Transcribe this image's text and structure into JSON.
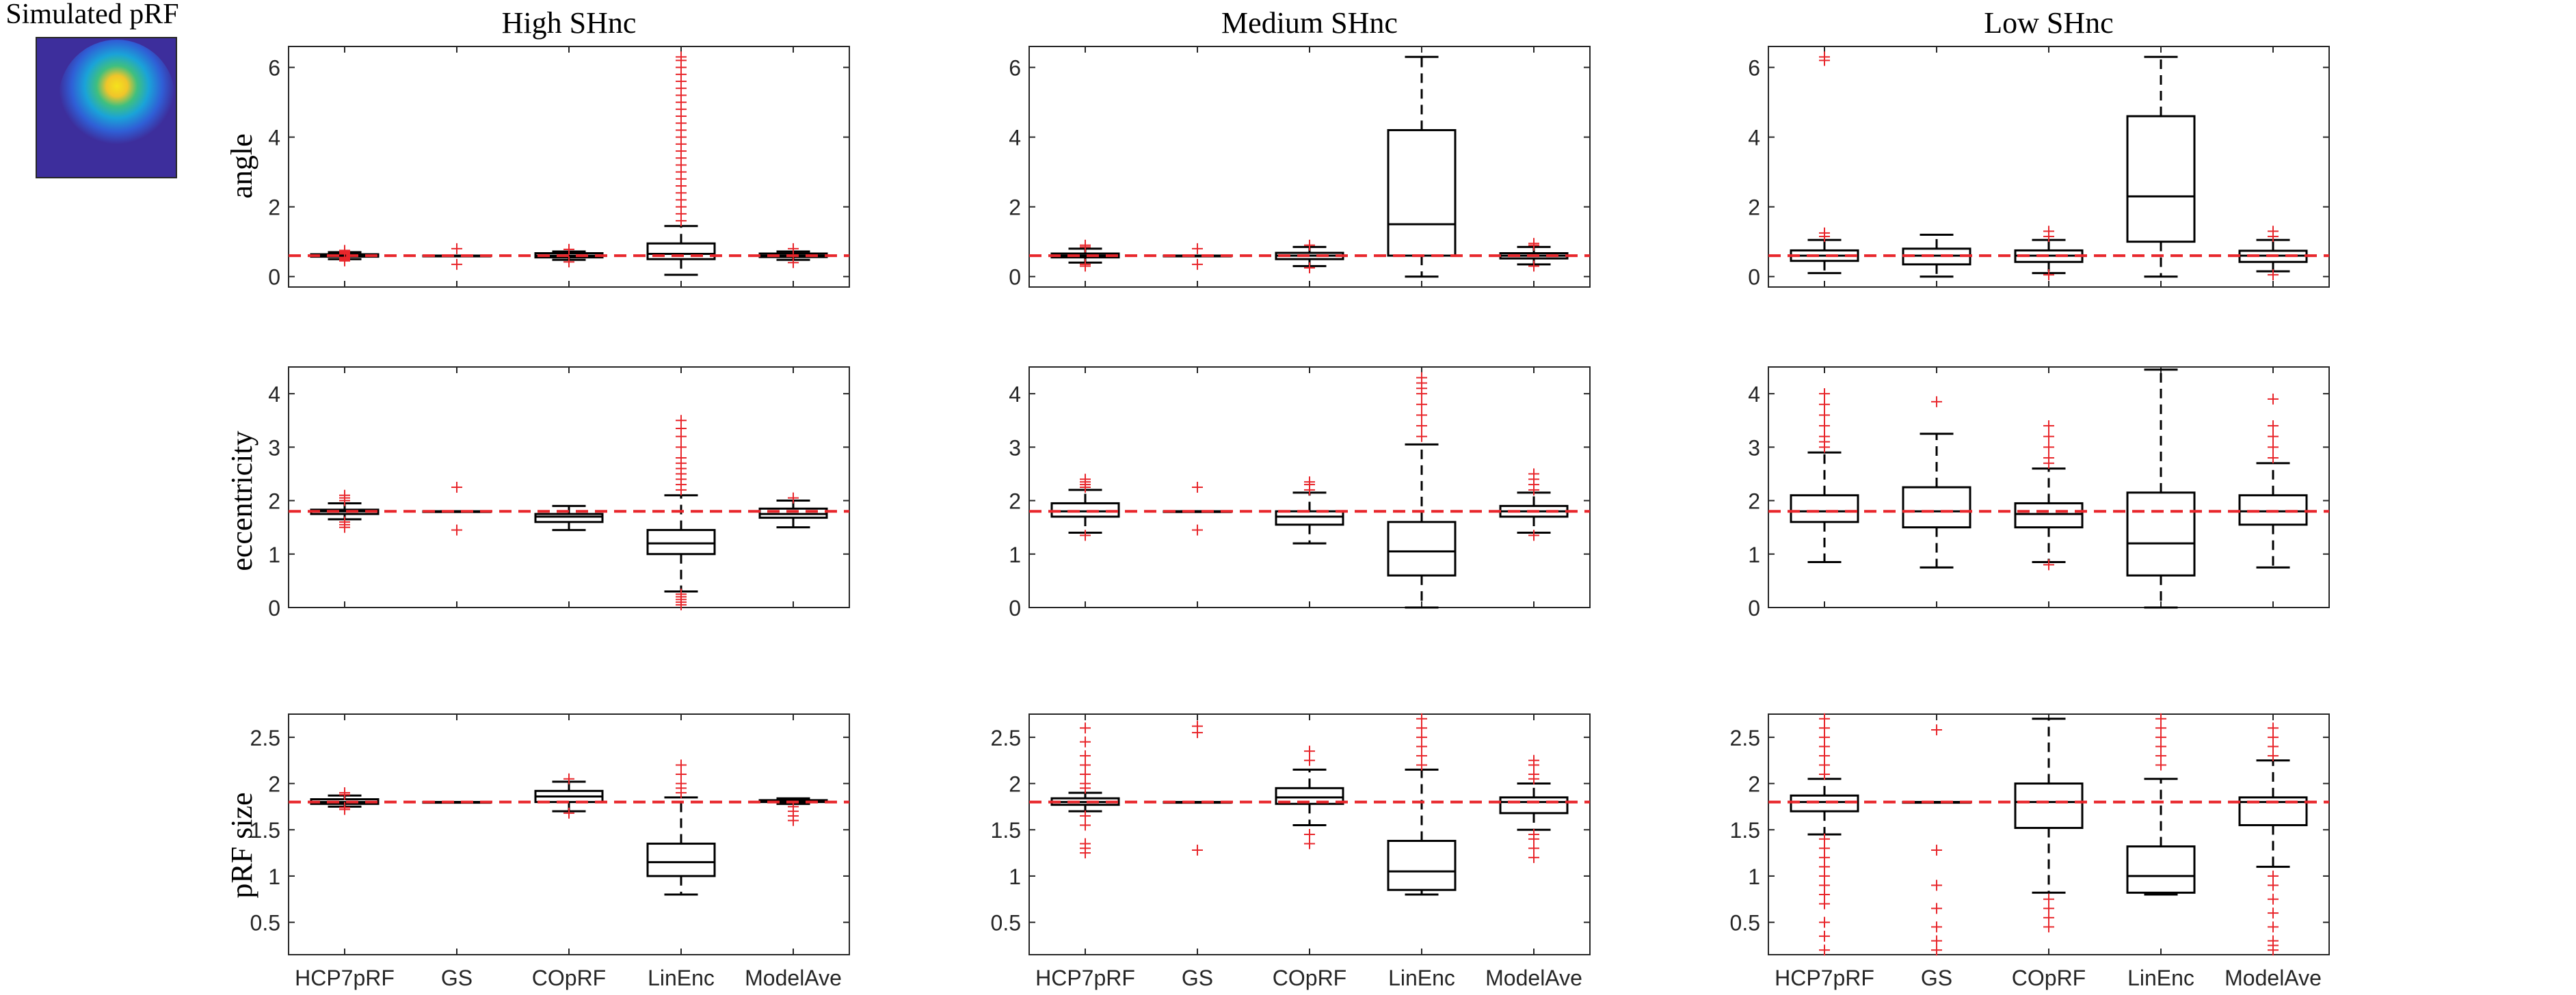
{
  "figure": {
    "inset_title": "Simulated pRF",
    "column_titles": [
      "High SHnc",
      "Medium SHnc",
      "Low SHnc"
    ],
    "row_labels": [
      "angle",
      "eccentricity",
      "pRF size"
    ],
    "methods": [
      "HCP7pRF",
      "GS",
      "COpRF",
      "LinEnc",
      "ModelAve"
    ]
  },
  "colors": {
    "box": "#000000",
    "outlier": "#e8262b",
    "reference_line": "#e8262b",
    "axes": "#262626",
    "inset_background": "#3d2e9c",
    "inset_center": "#f5e21c"
  },
  "chart_data": [
    {
      "type": "box",
      "title": "High SHnc",
      "ylabel": "angle",
      "ylim": [
        -0.3,
        6.6
      ],
      "yticks": [
        0,
        2,
        4,
        6
      ],
      "reference": 0.6,
      "categories": [
        "HCP7pRF",
        "GS",
        "COpRF",
        "LinEnc",
        "ModelAve"
      ],
      "boxes": [
        {
          "q1": 0.57,
          "median": 0.6,
          "q3": 0.64,
          "whisker_low": 0.5,
          "whisker_high": 0.7,
          "outliers": [
            0.45,
            0.48,
            0.5,
            0.52,
            0.55,
            0.65,
            0.68,
            0.7,
            0.72,
            0.75
          ]
        },
        {
          "q1": 0.6,
          "median": 0.6,
          "q3": 0.6,
          "whisker_low": 0.6,
          "whisker_high": 0.6,
          "outliers": [
            0.35,
            0.8
          ]
        },
        {
          "q1": 0.55,
          "median": 0.6,
          "q3": 0.67,
          "whisker_low": 0.48,
          "whisker_high": 0.72,
          "outliers": [
            0.42,
            0.78
          ]
        },
        {
          "q1": 0.5,
          "median": 0.65,
          "q3": 0.95,
          "whisker_low": 0.05,
          "whisker_high": 1.45,
          "outliers": [
            1.6,
            1.8,
            2.0,
            2.2,
            2.4,
            2.6,
            2.8,
            3.0,
            3.2,
            3.4,
            3.6,
            3.8,
            4.0,
            4.2,
            4.4,
            4.6,
            4.8,
            5.0,
            5.2,
            5.4,
            5.6,
            5.8,
            6.0,
            6.2,
            6.3
          ]
        },
        {
          "q1": 0.56,
          "median": 0.6,
          "q3": 0.66,
          "whisker_low": 0.48,
          "whisker_high": 0.72,
          "outliers": [
            0.4,
            0.8
          ]
        }
      ]
    },
    {
      "type": "box",
      "title": "Medium SHnc",
      "ylabel": "",
      "ylim": [
        -0.3,
        6.6
      ],
      "yticks": [
        0,
        2,
        4,
        6
      ],
      "reference": 0.6,
      "categories": [
        "HCP7pRF",
        "GS",
        "COpRF",
        "LinEnc",
        "ModelAve"
      ],
      "boxes": [
        {
          "q1": 0.55,
          "median": 0.6,
          "q3": 0.66,
          "whisker_low": 0.4,
          "whisker_high": 0.8,
          "outliers": [
            0.3,
            0.35,
            0.85,
            0.9
          ]
        },
        {
          "q1": 0.6,
          "median": 0.6,
          "q3": 0.6,
          "whisker_low": 0.6,
          "whisker_high": 0.6,
          "outliers": [
            0.35,
            0.8
          ]
        },
        {
          "q1": 0.5,
          "median": 0.6,
          "q3": 0.68,
          "whisker_low": 0.3,
          "whisker_high": 0.85,
          "outliers": [
            0.25,
            0.9
          ]
        },
        {
          "q1": 0.6,
          "median": 1.5,
          "q3": 4.2,
          "whisker_low": 0.0,
          "whisker_high": 6.3,
          "outliers": []
        },
        {
          "q1": 0.52,
          "median": 0.6,
          "q3": 0.67,
          "whisker_low": 0.35,
          "whisker_high": 0.85,
          "outliers": [
            0.3,
            0.9,
            0.95
          ]
        }
      ]
    },
    {
      "type": "box",
      "title": "Low SHnc",
      "ylabel": "",
      "ylim": [
        -0.3,
        6.6
      ],
      "yticks": [
        0,
        2,
        4,
        6
      ],
      "reference": 0.6,
      "categories": [
        "HCP7pRF",
        "GS",
        "COpRF",
        "LinEnc",
        "ModelAve"
      ],
      "boxes": [
        {
          "q1": 0.45,
          "median": 0.6,
          "q3": 0.75,
          "whisker_low": 0.1,
          "whisker_high": 1.05,
          "outliers": [
            1.15,
            1.25,
            6.2,
            6.3
          ]
        },
        {
          "q1": 0.35,
          "median": 0.6,
          "q3": 0.8,
          "whisker_low": 0.0,
          "whisker_high": 1.2,
          "outliers": []
        },
        {
          "q1": 0.42,
          "median": 0.6,
          "q3": 0.75,
          "whisker_low": 0.1,
          "whisker_high": 1.05,
          "outliers": [
            0.05,
            1.15,
            1.3
          ]
        },
        {
          "q1": 1.0,
          "median": 2.3,
          "q3": 4.6,
          "whisker_low": 0.0,
          "whisker_high": 6.3,
          "outliers": []
        },
        {
          "q1": 0.42,
          "median": 0.6,
          "q3": 0.74,
          "whisker_low": 0.15,
          "whisker_high": 1.05,
          "outliers": [
            0.05,
            1.15,
            1.3
          ]
        }
      ]
    },
    {
      "type": "box",
      "title": "",
      "ylabel": "eccentricity",
      "ylim": [
        0,
        4.5
      ],
      "yticks": [
        0,
        1,
        2,
        3,
        4
      ],
      "reference": 1.8,
      "categories": [
        "HCP7pRF",
        "GS",
        "COpRF",
        "LinEnc",
        "ModelAve"
      ],
      "boxes": [
        {
          "q1": 1.75,
          "median": 1.8,
          "q3": 1.83,
          "whisker_low": 1.65,
          "whisker_high": 1.95,
          "outliers": [
            1.5,
            1.55,
            1.6,
            2.0,
            2.05,
            2.1
          ]
        },
        {
          "q1": 1.8,
          "median": 1.8,
          "q3": 1.8,
          "whisker_low": 1.8,
          "whisker_high": 1.8,
          "outliers": [
            1.45,
            2.25
          ]
        },
        {
          "q1": 1.6,
          "median": 1.7,
          "q3": 1.75,
          "whisker_low": 1.45,
          "whisker_high": 1.9,
          "outliers": []
        },
        {
          "q1": 1.0,
          "median": 1.2,
          "q3": 1.45,
          "whisker_low": 0.3,
          "whisker_high": 2.1,
          "outliers": [
            0.05,
            0.1,
            0.15,
            0.2,
            0.25,
            2.2,
            2.3,
            2.4,
            2.5,
            2.6,
            2.7,
            2.8,
            3.0,
            3.2,
            3.35,
            3.5
          ]
        },
        {
          "q1": 1.68,
          "median": 1.75,
          "q3": 1.85,
          "whisker_low": 1.5,
          "whisker_high": 2.0,
          "outliers": [
            2.05
          ]
        }
      ]
    },
    {
      "type": "box",
      "title": "",
      "ylabel": "",
      "ylim": [
        0,
        4.5
      ],
      "yticks": [
        0,
        1,
        2,
        3,
        4
      ],
      "reference": 1.8,
      "categories": [
        "HCP7pRF",
        "GS",
        "COpRF",
        "LinEnc",
        "ModelAve"
      ],
      "boxes": [
        {
          "q1": 1.7,
          "median": 1.8,
          "q3": 1.95,
          "whisker_low": 1.4,
          "whisker_high": 2.2,
          "outliers": [
            1.35,
            2.25,
            2.3,
            2.35,
            2.4
          ]
        },
        {
          "q1": 1.8,
          "median": 1.8,
          "q3": 1.8,
          "whisker_low": 1.8,
          "whisker_high": 1.8,
          "outliers": [
            1.45,
            2.25
          ]
        },
        {
          "q1": 1.55,
          "median": 1.7,
          "q3": 1.8,
          "whisker_low": 1.2,
          "whisker_high": 2.15,
          "outliers": [
            2.2,
            2.3,
            2.35
          ]
        },
        {
          "q1": 0.6,
          "median": 1.05,
          "q3": 1.6,
          "whisker_low": 0.0,
          "whisker_high": 3.05,
          "outliers": [
            3.2,
            3.4,
            3.6,
            3.8,
            4.0,
            4.1,
            4.2,
            4.3
          ]
        },
        {
          "q1": 1.7,
          "median": 1.8,
          "q3": 1.9,
          "whisker_low": 1.4,
          "whisker_high": 2.15,
          "outliers": [
            1.35,
            2.2,
            2.3,
            2.4,
            2.5
          ]
        }
      ]
    },
    {
      "type": "box",
      "title": "",
      "ylabel": "",
      "ylim": [
        0,
        4.5
      ],
      "yticks": [
        0,
        1,
        2,
        3,
        4
      ],
      "reference": 1.8,
      "categories": [
        "HCP7pRF",
        "GS",
        "COpRF",
        "LinEnc",
        "ModelAve"
      ],
      "boxes": [
        {
          "q1": 1.6,
          "median": 1.8,
          "q3": 2.1,
          "whisker_low": 0.85,
          "whisker_high": 2.9,
          "outliers": [
            3.0,
            3.1,
            3.2,
            3.4,
            3.6,
            3.8,
            4.0
          ]
        },
        {
          "q1": 1.5,
          "median": 1.8,
          "q3": 2.25,
          "whisker_low": 0.75,
          "whisker_high": 3.25,
          "outliers": [
            3.85
          ]
        },
        {
          "q1": 1.5,
          "median": 1.75,
          "q3": 1.95,
          "whisker_low": 0.85,
          "whisker_high": 2.6,
          "outliers": [
            0.8,
            2.7,
            2.8,
            3.0,
            3.2,
            3.4
          ]
        },
        {
          "q1": 0.6,
          "median": 1.2,
          "q3": 2.15,
          "whisker_low": 0.0,
          "whisker_high": 4.45,
          "outliers": []
        },
        {
          "q1": 1.55,
          "median": 1.8,
          "q3": 2.1,
          "whisker_low": 0.75,
          "whisker_high": 2.7,
          "outliers": [
            2.8,
            3.0,
            3.2,
            3.4,
            3.9
          ]
        }
      ]
    },
    {
      "type": "box",
      "title": "",
      "ylabel": "pRF size",
      "ylim": [
        0.15,
        2.75
      ],
      "yticks": [
        0.5,
        1,
        1.5,
        2,
        2.5
      ],
      "reference": 1.8,
      "categories": [
        "HCP7pRF",
        "GS",
        "COpRF",
        "LinEnc",
        "ModelAve"
      ],
      "boxes": [
        {
          "q1": 1.78,
          "median": 1.8,
          "q3": 1.83,
          "whisker_low": 1.75,
          "whisker_high": 1.87,
          "outliers": [
            1.72,
            1.74,
            1.88,
            1.9
          ]
        },
        {
          "q1": 1.8,
          "median": 1.8,
          "q3": 1.8,
          "whisker_low": 1.8,
          "whisker_high": 1.8,
          "outliers": []
        },
        {
          "q1": 1.8,
          "median": 1.86,
          "q3": 1.92,
          "whisker_low": 1.7,
          "whisker_high": 2.02,
          "outliers": [
            1.68,
            2.05
          ]
        },
        {
          "q1": 1.0,
          "median": 1.15,
          "q3": 1.35,
          "whisker_low": 0.8,
          "whisker_high": 1.85,
          "outliers": [
            1.9,
            1.95,
            2.0,
            2.1,
            2.2
          ]
        },
        {
          "q1": 1.8,
          "median": 1.81,
          "q3": 1.82,
          "whisker_low": 1.78,
          "whisker_high": 1.84,
          "outliers": [
            1.6,
            1.65,
            1.7,
            1.75
          ]
        }
      ]
    },
    {
      "type": "box",
      "title": "",
      "ylabel": "",
      "ylim": [
        0.15,
        2.75
      ],
      "yticks": [
        0.5,
        1,
        1.5,
        2,
        2.5
      ],
      "reference": 1.8,
      "categories": [
        "HCP7pRF",
        "GS",
        "COpRF",
        "LinEnc",
        "ModelAve"
      ],
      "boxes": [
        {
          "q1": 1.77,
          "median": 1.8,
          "q3": 1.84,
          "whisker_low": 1.7,
          "whisker_high": 1.9,
          "outliers": [
            1.25,
            1.3,
            1.35,
            1.55,
            1.65,
            1.95,
            2.0,
            2.1,
            2.2,
            2.3,
            2.45,
            2.6
          ]
        },
        {
          "q1": 1.8,
          "median": 1.8,
          "q3": 1.8,
          "whisker_low": 1.8,
          "whisker_high": 1.8,
          "outliers": [
            1.28,
            2.55,
            2.62
          ]
        },
        {
          "q1": 1.78,
          "median": 1.85,
          "q3": 1.95,
          "whisker_low": 1.55,
          "whisker_high": 2.15,
          "outliers": [
            1.35,
            1.45,
            2.25,
            2.35
          ]
        },
        {
          "q1": 0.85,
          "median": 1.05,
          "q3": 1.38,
          "whisker_low": 0.8,
          "whisker_high": 2.15,
          "outliers": [
            2.2,
            2.3,
            2.4,
            2.5,
            2.6,
            2.7
          ]
        },
        {
          "q1": 1.68,
          "median": 1.8,
          "q3": 1.85,
          "whisker_low": 1.5,
          "whisker_high": 2.0,
          "outliers": [
            1.2,
            1.3,
            1.4,
            1.45,
            2.05,
            2.1,
            2.2,
            2.25
          ]
        }
      ]
    },
    {
      "type": "box",
      "title": "",
      "ylabel": "",
      "ylim": [
        0.15,
        2.75
      ],
      "yticks": [
        0.5,
        1,
        1.5,
        2,
        2.5
      ],
      "reference": 1.8,
      "categories": [
        "HCP7pRF",
        "GS",
        "COpRF",
        "LinEnc",
        "ModelAve"
      ],
      "boxes": [
        {
          "q1": 1.7,
          "median": 1.8,
          "q3": 1.87,
          "whisker_low": 1.45,
          "whisker_high": 2.05,
          "outliers": [
            0.2,
            0.35,
            0.5,
            0.7,
            0.8,
            0.9,
            1.0,
            1.1,
            1.2,
            1.3,
            1.4,
            2.1,
            2.2,
            2.3,
            2.4,
            2.5,
            2.6,
            2.7
          ]
        },
        {
          "q1": 1.8,
          "median": 1.8,
          "q3": 1.8,
          "whisker_low": 1.8,
          "whisker_high": 1.8,
          "outliers": [
            0.2,
            0.3,
            0.45,
            0.65,
            0.9,
            1.28,
            2.58
          ]
        },
        {
          "q1": 1.52,
          "median": 1.8,
          "q3": 2.0,
          "whisker_low": 0.82,
          "whisker_high": 2.7,
          "outliers": [
            0.45,
            0.55,
            0.65,
            0.75
          ]
        },
        {
          "q1": 0.82,
          "median": 1.0,
          "q3": 1.32,
          "whisker_low": 0.8,
          "whisker_high": 2.05,
          "outliers": [
            2.2,
            2.3,
            2.4,
            2.5,
            2.6,
            2.7
          ]
        },
        {
          "q1": 1.55,
          "median": 1.8,
          "q3": 1.85,
          "whisker_low": 1.1,
          "whisker_high": 2.25,
          "outliers": [
            0.2,
            0.25,
            0.3,
            0.45,
            0.6,
            0.75,
            0.9,
            1.0,
            2.3,
            2.4,
            2.5,
            2.6
          ]
        }
      ]
    }
  ]
}
